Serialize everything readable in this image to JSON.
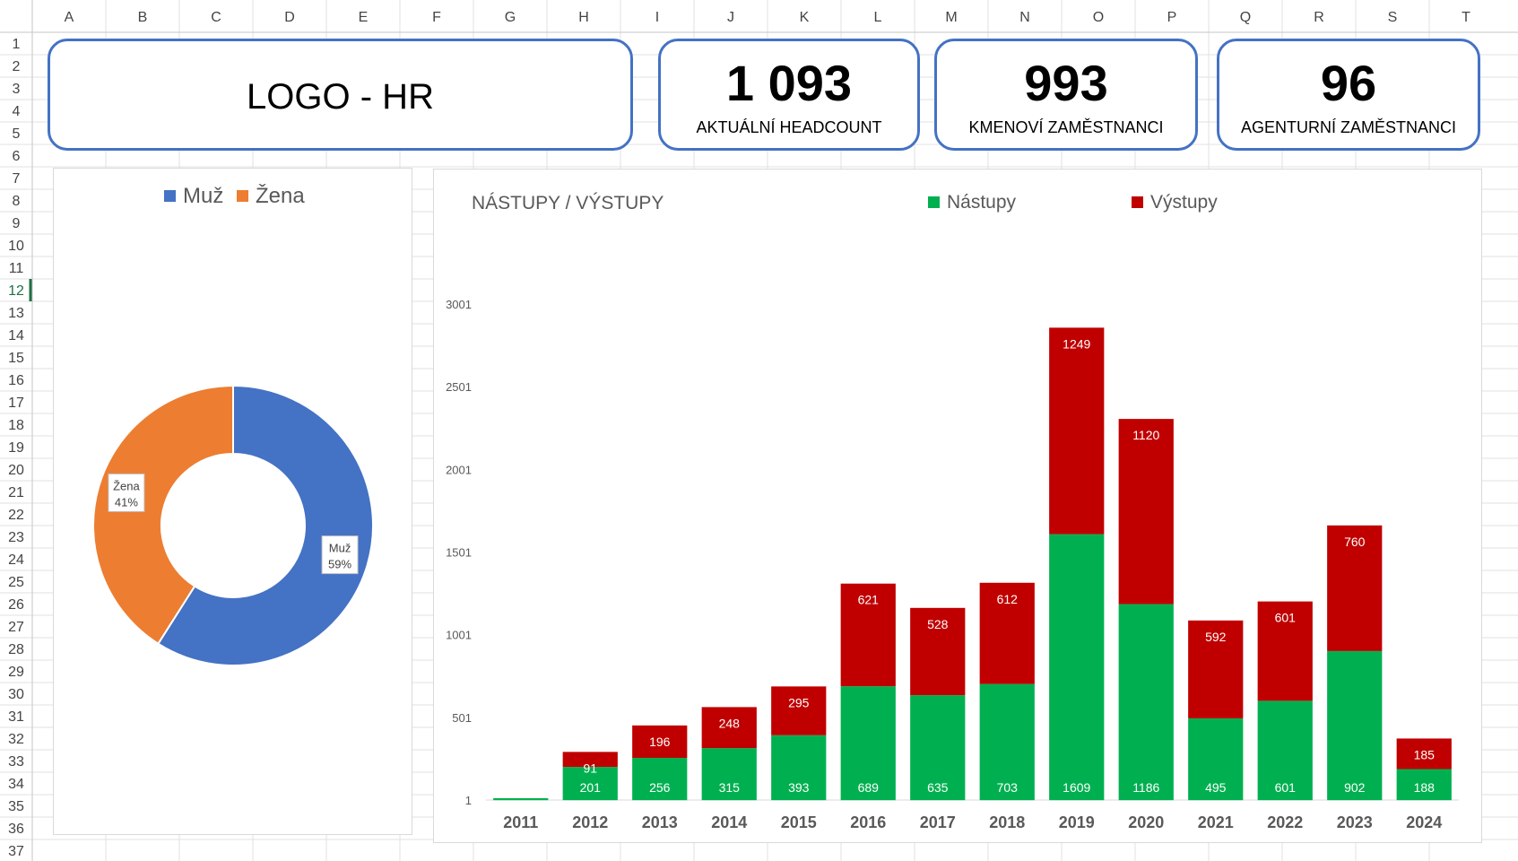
{
  "sheet": {
    "columns": [
      "A",
      "B",
      "C",
      "D",
      "E",
      "F",
      "G",
      "H",
      "I",
      "J",
      "K",
      "L",
      "M",
      "N",
      "O",
      "P",
      "Q",
      "R",
      "S",
      "T"
    ],
    "rows": [
      "1",
      "2",
      "3",
      "4",
      "5",
      "6",
      "7",
      "8",
      "9",
      "10",
      "11",
      "12",
      "13",
      "14",
      "15",
      "16",
      "17",
      "18",
      "19",
      "20",
      "21",
      "22",
      "23",
      "24",
      "25",
      "26",
      "27",
      "28",
      "29",
      "30",
      "31",
      "32",
      "33",
      "34",
      "35",
      "36",
      "37"
    ],
    "active_row": "12",
    "colors": {
      "grid": "#e1e1e1",
      "header_bg": "#ffffff",
      "header_text": "#444444",
      "active_row": "#1e7145"
    }
  },
  "logo": {
    "text": "LOGO - HR"
  },
  "kpis": [
    {
      "value": "1 093",
      "label": "AKTUÁLNÍ HEADCOUNT"
    },
    {
      "value": "993",
      "label": "KMENOVÍ ZAMĚSTNANCI"
    },
    {
      "value": "96",
      "label": "AGENTURNÍ ZAMĚSTNANCI"
    }
  ],
  "colors": {
    "kpi_border": "#4472c4",
    "male": "#4472c4",
    "female": "#ed7d31",
    "hires": "#00b050",
    "exits": "#c00000"
  },
  "chart_data": [
    {
      "type": "pie",
      "variant": "doughnut",
      "title": "",
      "legend": [
        "Muž",
        "Žena"
      ],
      "legend_position": "top",
      "slices": [
        {
          "label": "Muž",
          "value": 59,
          "display": "59%"
        },
        {
          "label": "Žena",
          "value": 41,
          "display": "41%"
        }
      ]
    },
    {
      "type": "bar",
      "stacked": true,
      "title": "NÁSTUPY / VÝSTUPY",
      "legend_position": "top-right",
      "categories": [
        "2011",
        "2012",
        "2013",
        "2014",
        "2015",
        "2016",
        "2017",
        "2018",
        "2019",
        "2020",
        "2021",
        "2022",
        "2023",
        "2024"
      ],
      "series": [
        {
          "name": "Nástupy",
          "values": [
            12,
            201,
            256,
            315,
            393,
            689,
            635,
            703,
            1609,
            1186,
            495,
            601,
            902,
            188
          ],
          "labels": [
            "",
            "201",
            "256",
            "315",
            "393",
            "689",
            "635",
            "703",
            "1609",
            "1186",
            "495",
            "601",
            "902",
            "188"
          ]
        },
        {
          "name": "Výstupy",
          "values": [
            0,
            91,
            196,
            248,
            295,
            621,
            528,
            612,
            1249,
            1120,
            592,
            601,
            760,
            185
          ],
          "labels": [
            "",
            "91",
            "196",
            "248",
            "295",
            "621",
            "528",
            "612",
            "1249",
            "1120",
            "592",
            "601",
            "760",
            "185"
          ]
        }
      ],
      "yticks": [
        "1",
        "501",
        "1001",
        "1501",
        "2001",
        "2501",
        "3001"
      ],
      "ylim": [
        1,
        3001
      ],
      "grid": false
    }
  ]
}
